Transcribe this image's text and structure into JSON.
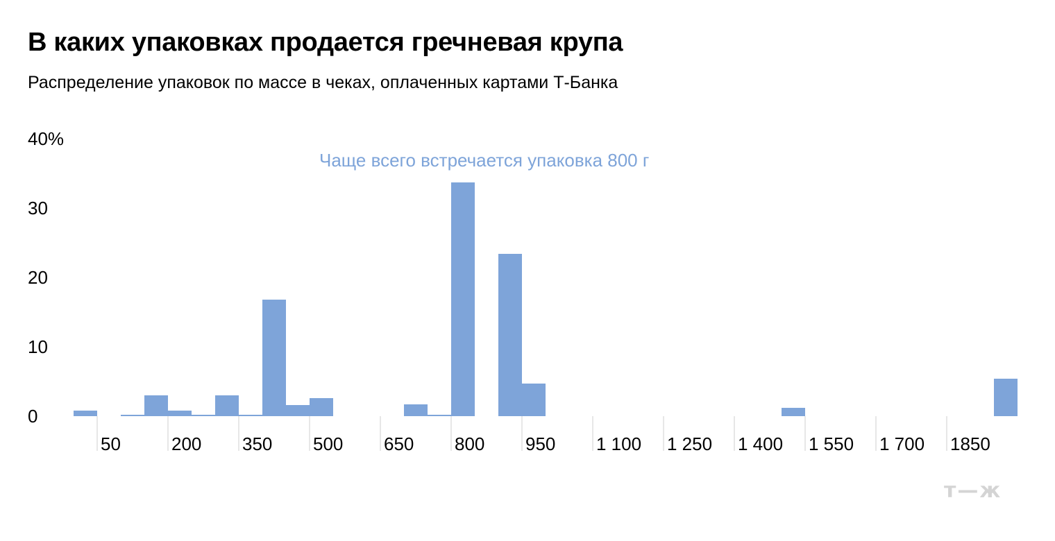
{
  "header": {
    "title": "В каких упаковках продается гречневая крупа",
    "subtitle": "Распределение упаковок по массе в чеках, оплаченных картами Т-Банка"
  },
  "logo": {
    "text": "т—ж"
  },
  "chart_data": {
    "type": "bar",
    "title": "В каких упаковках продается гречневая крупа",
    "subtitle": "Распределение упаковок по массе в чеках, оплаченных картами Т-Банка",
    "xlabel": "",
    "ylabel": "",
    "bar_color": "#7ea4d9",
    "ylim": [
      0,
      40
    ],
    "y_ticks": [
      0,
      10,
      20,
      30,
      40
    ],
    "y_tick_labels": [
      "0",
      "10",
      "20",
      "30",
      "40%"
    ],
    "x_start": 0,
    "x_step": 50,
    "x_tick_labels": [
      {
        "value": 50,
        "label": "50"
      },
      {
        "value": 200,
        "label": "200"
      },
      {
        "value": 350,
        "label": "350"
      },
      {
        "value": 500,
        "label": "500"
      },
      {
        "value": 650,
        "label": "650"
      },
      {
        "value": 800,
        "label": "800"
      },
      {
        "value": 950,
        "label": "950"
      },
      {
        "value": 1100,
        "label": "1 100"
      },
      {
        "value": 1250,
        "label": "1 250"
      },
      {
        "value": 1400,
        "label": "1 400"
      },
      {
        "value": 1550,
        "label": "1 550"
      },
      {
        "value": 1700,
        "label": "1 700"
      },
      {
        "value": 1850,
        "label": "1850"
      }
    ],
    "categories": [
      0,
      50,
      100,
      150,
      200,
      250,
      300,
      350,
      400,
      450,
      500,
      550,
      600,
      650,
      700,
      750,
      800,
      850,
      900,
      950,
      1000,
      1050,
      1100,
      1150,
      1200,
      1250,
      1300,
      1350,
      1400,
      1450,
      1500,
      1550,
      1600,
      1650,
      1700,
      1750,
      1800,
      1850,
      1900,
      1950
    ],
    "values": [
      0.8,
      0,
      0.2,
      3,
      0.8,
      0.2,
      3,
      0.2,
      16.8,
      1.6,
      2.6,
      0,
      0,
      0,
      1.7,
      0.2,
      33.7,
      0,
      23.4,
      4.7,
      0,
      0,
      0,
      0,
      0,
      0,
      0,
      0,
      0,
      0,
      1.2,
      0,
      0,
      0,
      0,
      0,
      0,
      0,
      0,
      5.4
    ],
    "annotations": [
      {
        "text": "Чаще всего встречается упаковка 800 г",
        "x": 800
      }
    ]
  }
}
